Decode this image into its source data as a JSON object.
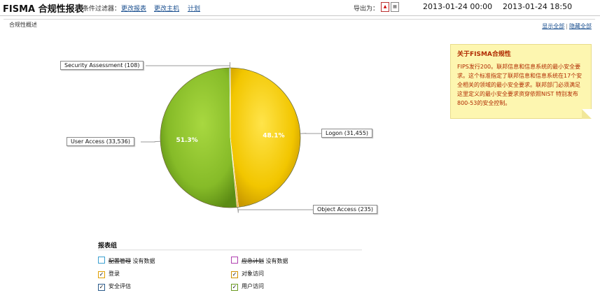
{
  "header": {
    "title": "FISMA 合规性报表",
    "separator": "|",
    "filter_label": "条件过滤器：",
    "links": [
      "更改报表",
      "更改主机",
      "计划"
    ],
    "export_label": "导出为：",
    "export_icons": [
      "pdf-icon",
      "csv-icon"
    ],
    "start_time": "2013-01-24 00:00",
    "end_time": "2013-01-24 18:50"
  },
  "panel": {
    "title": "合规性概述",
    "show_all": "显示全部",
    "link_separator": "|",
    "hide_all": "隐藏全部"
  },
  "note": {
    "title": "关于FISMA合规性",
    "body": "FIPS发行200。联邦信息和信息系统的最小安全要求。这个标准指定了联邦信息和信息系统在17个安全相关的领域的最小安全要求。联邦部门必须满足这里定义的最小安全要求资穿依照NIST 特别发布800-53的安全控制。"
  },
  "chart_data": {
    "type": "pie",
    "slices": [
      {
        "label": "Logon (31,455)",
        "name": "Logon",
        "value": 31455,
        "percent_label": "48.1%",
        "color": "#f0c800"
      },
      {
        "label": "Object Access (235)",
        "name": "Object Access",
        "value": 235,
        "percent_label": "",
        "color": "#f5b030"
      },
      {
        "label": "User Access (33,536)",
        "name": "User Access",
        "value": 33536,
        "percent_label": "51.3%",
        "color": "#8cc02a"
      },
      {
        "label": "Security Assessment (108)",
        "name": "Security Assessment",
        "value": 108,
        "percent_label": "",
        "color": "#3a7fbf"
      }
    ]
  },
  "legend": {
    "title": "报表组",
    "items": [
      {
        "label": "配置管理",
        "suffix": "没有数据",
        "checked": false,
        "color": "#3a9fd0",
        "strike": true
      },
      {
        "label": "应急计划",
        "suffix": "没有数据",
        "checked": false,
        "color": "#b040b0",
        "strike": true
      },
      {
        "label": "登录",
        "suffix": "",
        "checked": true,
        "color": "#e0a000",
        "strike": false
      },
      {
        "label": "对象访问",
        "suffix": "",
        "checked": true,
        "color": "#d09000",
        "strike": false
      },
      {
        "label": "安全评估",
        "suffix": "",
        "checked": true,
        "color": "#2a5a8a",
        "strike": false
      },
      {
        "label": "用户访问",
        "suffix": "",
        "checked": true,
        "color": "#6a9a20",
        "strike": false
      }
    ]
  }
}
